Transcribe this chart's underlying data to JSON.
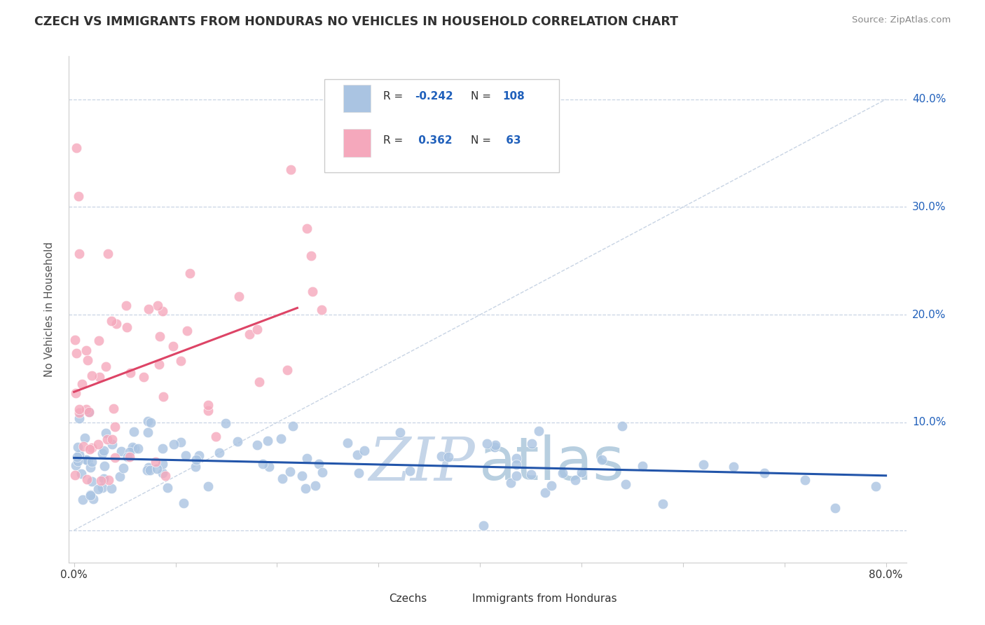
{
  "title": "CZECH VS IMMIGRANTS FROM HONDURAS NO VEHICLES IN HOUSEHOLD CORRELATION CHART",
  "source": "Source: ZipAtlas.com",
  "ylabel": "No Vehicles in Household",
  "ytick_labels": [
    "",
    "10.0%",
    "20.0%",
    "30.0%",
    "40.0%"
  ],
  "ytick_vals": [
    0.0,
    0.1,
    0.2,
    0.3,
    0.4
  ],
  "xlim": [
    -0.005,
    0.82
  ],
  "ylim": [
    -0.03,
    0.44
  ],
  "czech_R": -0.242,
  "czech_N": 108,
  "honduras_R": 0.362,
  "honduras_N": 63,
  "czech_color": "#aac4e2",
  "honduras_color": "#f5a8bc",
  "czech_line_color": "#2255aa",
  "honduras_line_color": "#dd4466",
  "watermark_zip_color": "#c5d5e8",
  "watermark_atlas_color": "#b8cfe0",
  "background_color": "#ffffff",
  "grid_color": "#c8d4e4",
  "title_color": "#303030",
  "axis_label_color": "#2060bb",
  "legend_text_color": "#303030",
  "legend_value_color": "#2060bb",
  "legend_box_color": "#dddddd",
  "source_color": "#888888"
}
